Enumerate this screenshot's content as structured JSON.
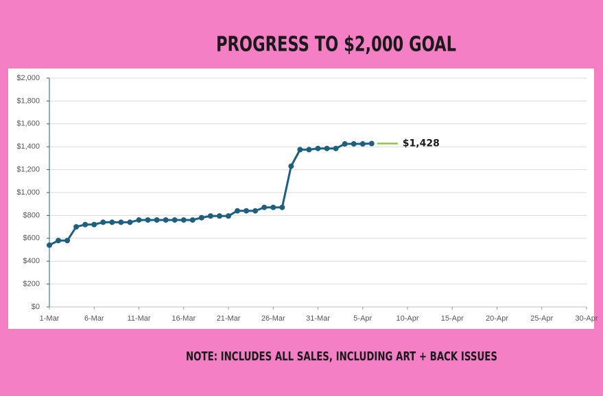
{
  "chart_data": {
    "type": "line",
    "title": "PROGRESS TO $2,000 GOAL",
    "note": "NOTE: INCLUDES ALL SALES, INCLUDING ART + BACK ISSUES",
    "categories": [
      "1-Mar",
      null,
      null,
      null,
      null,
      "6-Mar",
      null,
      null,
      null,
      null,
      "11-Mar",
      null,
      null,
      null,
      null,
      "16-Mar",
      null,
      null,
      null,
      null,
      "21-Mar",
      null,
      null,
      null,
      null,
      "26-Mar",
      null,
      null,
      null,
      null,
      "31-Mar",
      null,
      null,
      null,
      null,
      "5-Apr",
      null,
      null,
      null,
      null,
      "10-Apr",
      null,
      null,
      null,
      null,
      "15-Apr",
      null,
      null,
      null,
      null,
      "20-Apr",
      null,
      null,
      null,
      null,
      "25-Apr",
      null,
      null,
      null,
      null,
      "30-Apr"
    ],
    "values": [
      540,
      580,
      580,
      700,
      720,
      720,
      740,
      740,
      740,
      740,
      760,
      760,
      760,
      760,
      760,
      760,
      760,
      780,
      795,
      795,
      795,
      840,
      840,
      840,
      870,
      870,
      870,
      1230,
      1375,
      1375,
      1385,
      1385,
      1385,
      1425,
      1425,
      1425,
      1428,
      null,
      null,
      null,
      null,
      null,
      null,
      null,
      null,
      null,
      null,
      null,
      null,
      null,
      null,
      null,
      null,
      null,
      null,
      null,
      null,
      null,
      null,
      null,
      null
    ],
    "value_labels": [
      null,
      null,
      null,
      null,
      null,
      null,
      null,
      null,
      null,
      null,
      null,
      null,
      null,
      null,
      null,
      null,
      null,
      null,
      null,
      null,
      null,
      null,
      null,
      null,
      null,
      null,
      null,
      null,
      null,
      null,
      null,
      null,
      null,
      null,
      null,
      null,
      "$1,428",
      null,
      null,
      null,
      null,
      null,
      null,
      null,
      null,
      null,
      null,
      null,
      null,
      null,
      null,
      null,
      null,
      null,
      null,
      null,
      null,
      null,
      null,
      null,
      null
    ],
    "color": "#1d5f7e",
    "label_color": "#8cc63f",
    "ylim": [
      0,
      2000
    ],
    "yticks": [
      {
        "value": 0,
        "label": "$0"
      },
      {
        "value": 200,
        "label": "$200"
      },
      {
        "value": 400,
        "label": "$400"
      },
      {
        "value": 600,
        "label": "$600"
      },
      {
        "value": 800,
        "label": "$800"
      },
      {
        "value": 1000,
        "label": "$1,000"
      },
      {
        "value": 1200,
        "label": "$1,200"
      },
      {
        "value": 1400,
        "label": "$1,400"
      },
      {
        "value": 1600,
        "label": "$1,600"
      },
      {
        "value": 1800,
        "label": "$1,800"
      },
      {
        "value": 2000,
        "label": "$2,000"
      }
    ],
    "grid": true
  }
}
